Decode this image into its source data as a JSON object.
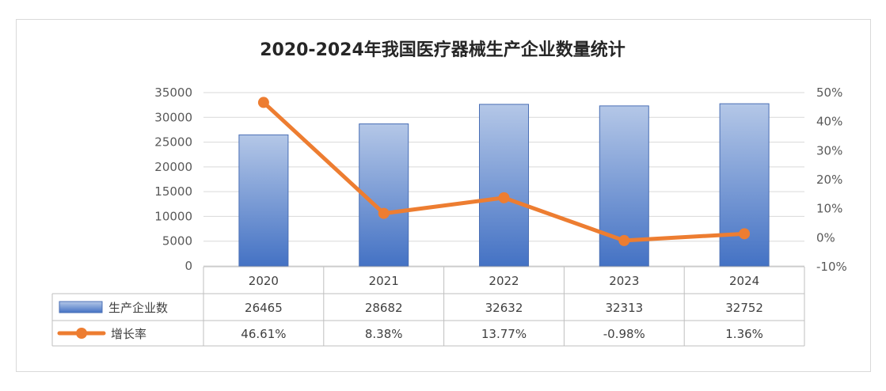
{
  "chart_data": {
    "type": "bar",
    "title": "2020-2024年我国医疗器械生产企业数量统计",
    "categories": [
      "2020",
      "2021",
      "2022",
      "2023",
      "2024"
    ],
    "series": [
      {
        "name": "生产企业数",
        "type": "bar",
        "axis": "left",
        "values": [
          26465,
          28682,
          32632,
          32313,
          32752
        ],
        "value_labels": [
          "26465",
          "28682",
          "32632",
          "32313",
          "32752"
        ],
        "color": "#4472c4"
      },
      {
        "name": "增长率",
        "type": "line",
        "axis": "right",
        "values": [
          46.61,
          8.38,
          13.77,
          -0.98,
          1.36
        ],
        "value_labels": [
          "46.61%",
          "8.38%",
          "13.77%",
          "-0.98%",
          "1.36%"
        ],
        "color": "#ed7d31"
      }
    ],
    "y_left": {
      "min": 0,
      "max": 35000,
      "ticks": [
        0,
        5000,
        10000,
        15000,
        20000,
        25000,
        30000,
        35000
      ],
      "tick_labels": [
        "0",
        "5000",
        "10000",
        "15000",
        "20000",
        "25000",
        "30000",
        "35000"
      ]
    },
    "y_right": {
      "min": -10,
      "max": 50,
      "ticks": [
        -10,
        0,
        10,
        20,
        30,
        40,
        50
      ],
      "tick_labels": [
        "-10%",
        "0%",
        "10%",
        "20%",
        "30%",
        "40%",
        "50%"
      ]
    },
    "grid": true,
    "legend": "data-table"
  }
}
